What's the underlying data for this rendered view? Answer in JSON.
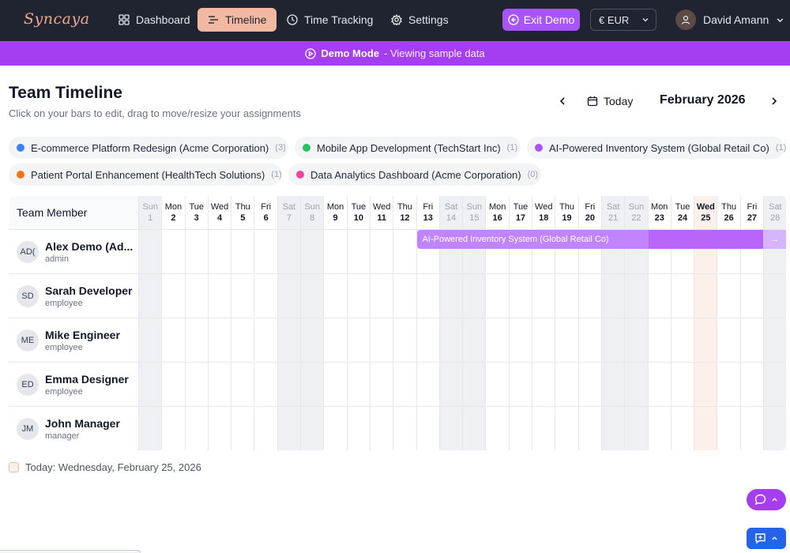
{
  "app": {
    "logo": "Syncaya"
  },
  "nav": {
    "items": [
      {
        "label": "Dashboard",
        "icon": "grid-icon",
        "active": false
      },
      {
        "label": "Timeline",
        "icon": "timeline-icon",
        "active": true
      },
      {
        "label": "Time Tracking",
        "icon": "clock-icon",
        "active": false
      },
      {
        "label": "Settings",
        "icon": "gear-icon",
        "active": false
      }
    ],
    "exit_demo": "Exit Demo",
    "currency": "€ EUR",
    "user_name": "David Amann"
  },
  "banner": {
    "mode": "Demo Mode",
    "text": "- Viewing sample data"
  },
  "header": {
    "title": "Team Timeline",
    "subtitle": "Click on your bars to edit, drag to move/resize your assignments",
    "today_label": "Today",
    "month": "February 2026"
  },
  "projects": [
    {
      "name": "E-commerce Platform Redesign (Acme Corporation)",
      "count": "(3)",
      "color": "#3b82f6"
    },
    {
      "name": "Mobile App Development (TechStart Inc)",
      "count": "(1)",
      "color": "#22c55e"
    },
    {
      "name": "AI-Powered Inventory System (Global Retail Co)",
      "count": "(1)",
      "color": "#a855f7"
    },
    {
      "name": "Patient Portal Enhancement (HealthTech Solutions)",
      "count": "(1)",
      "color": "#f97316"
    },
    {
      "name": "Data Analytics Dashboard (Acme Corporation)",
      "count": "(0)",
      "color": "#ec4899"
    }
  ],
  "timeline": {
    "member_header": "Team Member",
    "days": [
      {
        "name": "Sun",
        "num": "1",
        "weekend": true
      },
      {
        "name": "Mon",
        "num": "2",
        "weekend": false
      },
      {
        "name": "Tue",
        "num": "3",
        "weekend": false
      },
      {
        "name": "Wed",
        "num": "4",
        "weekend": false
      },
      {
        "name": "Thu",
        "num": "5",
        "weekend": false
      },
      {
        "name": "Fri",
        "num": "6",
        "weekend": false
      },
      {
        "name": "Sat",
        "num": "7",
        "weekend": true
      },
      {
        "name": "Sun",
        "num": "8",
        "weekend": true
      },
      {
        "name": "Mon",
        "num": "9",
        "weekend": false
      },
      {
        "name": "Tue",
        "num": "10",
        "weekend": false
      },
      {
        "name": "Wed",
        "num": "11",
        "weekend": false
      },
      {
        "name": "Thu",
        "num": "12",
        "weekend": false
      },
      {
        "name": "Fri",
        "num": "13",
        "weekend": false
      },
      {
        "name": "Sat",
        "num": "14",
        "weekend": true
      },
      {
        "name": "Sun",
        "num": "15",
        "weekend": true
      },
      {
        "name": "Mon",
        "num": "16",
        "weekend": false
      },
      {
        "name": "Tue",
        "num": "17",
        "weekend": false
      },
      {
        "name": "Wed",
        "num": "18",
        "weekend": false
      },
      {
        "name": "Thu",
        "num": "19",
        "weekend": false
      },
      {
        "name": "Fri",
        "num": "20",
        "weekend": false
      },
      {
        "name": "Sat",
        "num": "21",
        "weekend": true
      },
      {
        "name": "Sun",
        "num": "22",
        "weekend": true
      },
      {
        "name": "Mon",
        "num": "23",
        "weekend": false
      },
      {
        "name": "Tue",
        "num": "24",
        "weekend": false
      },
      {
        "name": "Wed",
        "num": "25",
        "weekend": false,
        "today": true
      },
      {
        "name": "Thu",
        "num": "26",
        "weekend": false
      },
      {
        "name": "Fri",
        "num": "27",
        "weekend": false
      },
      {
        "name": "Sat",
        "num": "28",
        "weekend": true
      }
    ],
    "members": [
      {
        "initials": "AD(",
        "name": "Alex Demo (Ad...",
        "role": "admin"
      },
      {
        "initials": "SD",
        "name": "Sarah Developer",
        "role": "employee"
      },
      {
        "initials": "ME",
        "name": "Mike Engineer",
        "role": "employee"
      },
      {
        "initials": "ED",
        "name": "Emma Designer",
        "role": "employee"
      },
      {
        "initials": "JM",
        "name": "John Manager",
        "role": "manager"
      }
    ],
    "assignment": {
      "label": "AI-Powered Inventory System (Global Retail Co)",
      "arrow": "→",
      "start_day": 13,
      "member": 0
    }
  },
  "footer": {
    "today_text": "Today: Wednesday, February 25, 2026"
  }
}
